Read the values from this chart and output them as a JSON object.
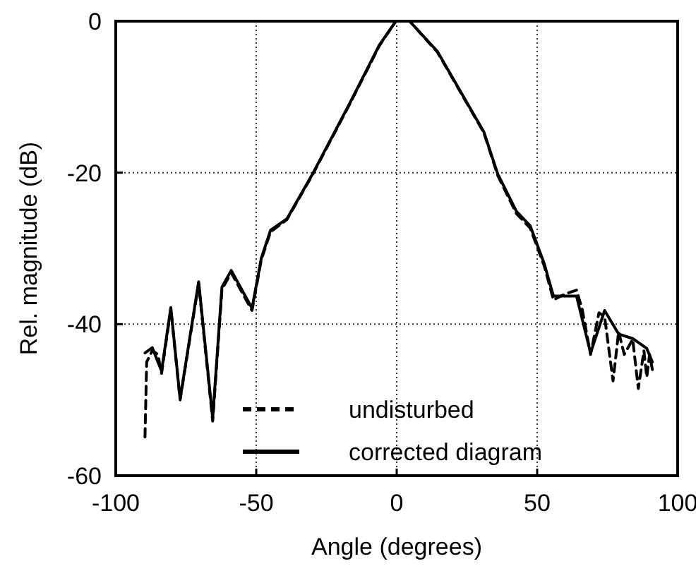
{
  "chart_data": {
    "type": "line",
    "xlabel": "Angle (degrees)",
    "ylabel": "Rel. magnitude (dB)",
    "xlim": [
      -100,
      100
    ],
    "xticks": [
      -100,
      -50,
      0,
      50,
      100
    ],
    "ylim": [
      -60,
      0
    ],
    "yticks": [
      -60,
      -40,
      -20,
      0
    ],
    "grid": true,
    "legend": "bottom",
    "series": [
      {
        "name": "undisturbed",
        "color": "#000000",
        "line_style": "dashed",
        "x": [
          -89.6,
          -89,
          -87,
          -85,
          -83.7,
          -80.4,
          -77.1,
          -70.5,
          -65.5,
          -62.2,
          -58.9,
          -51.5,
          -48.2,
          -44.9,
          -39.1,
          -30,
          -16.8,
          -6.1,
          -0.3,
          4.6,
          14.5,
          31,
          36,
          42.6,
          47.5,
          52.5,
          55.8,
          60,
          64,
          66,
          69,
          72,
          74,
          77,
          79,
          81,
          84,
          86,
          88,
          89,
          90,
          91
        ],
        "values": [
          -54.9,
          -45,
          -43.5,
          -44,
          -46.5,
          -38,
          -50,
          -34.6,
          -52.8,
          -35.4,
          -33.2,
          -38.2,
          -31.5,
          -27.8,
          -26.2,
          -20.3,
          -11,
          -3.2,
          0,
          0,
          -4.1,
          -14.7,
          -20.4,
          -25.4,
          -27.3,
          -32.3,
          -36.8,
          -36,
          -35.5,
          -38,
          -44,
          -38.5,
          -39,
          -47.5,
          -41,
          -44,
          -42,
          -48.5,
          -43.5,
          -47,
          -44,
          -46
        ]
      },
      {
        "name": "corrected diagram",
        "color": "#000000",
        "line_style": "solid",
        "x": [
          -89.6,
          -87,
          -83.7,
          -80.4,
          -77.1,
          -70.5,
          -65.5,
          -62.2,
          -58.9,
          -51.5,
          -48.2,
          -44.9,
          -39.1,
          -30,
          -16.8,
          -6.1,
          -0.3,
          4.6,
          14.5,
          31,
          36,
          42.6,
          47.5,
          52.5,
          55.8,
          64,
          69,
          74,
          79,
          84,
          89,
          91
        ],
        "values": [
          -43.8,
          -43.1,
          -46.2,
          -37.8,
          -49.9,
          -34.4,
          -52.4,
          -35.1,
          -32.9,
          -37.9,
          -31.3,
          -27.6,
          -26.1,
          -20.2,
          -10.9,
          -3.1,
          0,
          0,
          -4,
          -14.6,
          -20.2,
          -25.1,
          -27,
          -32,
          -36.3,
          -36.3,
          -43.8,
          -38.2,
          -41.3,
          -41.9,
          -43.2,
          -45
        ]
      }
    ]
  }
}
